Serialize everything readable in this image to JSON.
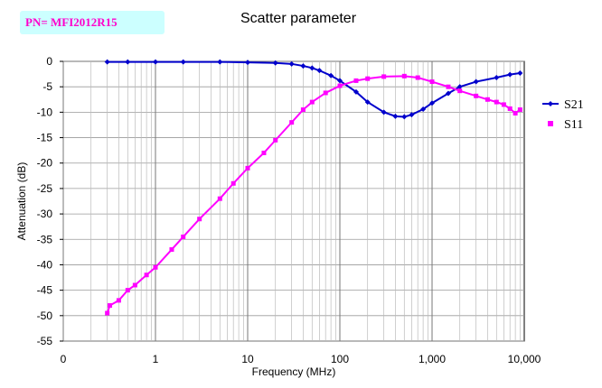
{
  "badge": {
    "text": "PN= MFI2012R15"
  },
  "chart_data": {
    "type": "scatter",
    "title": "Scatter parameter",
    "xlabel": "Frequency (MHz)",
    "ylabel": "Attenuation (dB)",
    "x_scale": "log",
    "x_ticks": [
      {
        "value": 0.1,
        "label": "0"
      },
      {
        "value": 1,
        "label": "1"
      },
      {
        "value": 10,
        "label": "10"
      },
      {
        "value": 100,
        "label": "100"
      },
      {
        "value": 1000,
        "label": "1,000"
      },
      {
        "value": 10000,
        "label": "10,000"
      }
    ],
    "xlim": [
      0.1,
      10000
    ],
    "ylim": [
      -55,
      0
    ],
    "y_ticks": [
      0,
      -5,
      -10,
      -15,
      -20,
      -25,
      -30,
      -35,
      -40,
      -45,
      -50,
      -55
    ],
    "grid": true,
    "legend_position": "right",
    "series": [
      {
        "name": "S21",
        "color": "#0000cc",
        "marker": "diamond",
        "points": [
          [
            0.3,
            -0.1
          ],
          [
            0.5,
            -0.1
          ],
          [
            1,
            -0.1
          ],
          [
            2,
            -0.1
          ],
          [
            5,
            -0.1
          ],
          [
            10,
            -0.2
          ],
          [
            20,
            -0.3
          ],
          [
            30,
            -0.5
          ],
          [
            40,
            -0.9
          ],
          [
            50,
            -1.3
          ],
          [
            60,
            -1.8
          ],
          [
            80,
            -2.8
          ],
          [
            100,
            -3.8
          ],
          [
            150,
            -6.0
          ],
          [
            200,
            -8.0
          ],
          [
            300,
            -10.0
          ],
          [
            400,
            -10.8
          ],
          [
            500,
            -10.9
          ],
          [
            600,
            -10.5
          ],
          [
            800,
            -9.4
          ],
          [
            1000,
            -8.2
          ],
          [
            1500,
            -6.3
          ],
          [
            2000,
            -5.0
          ],
          [
            3000,
            -4.0
          ],
          [
            5000,
            -3.2
          ],
          [
            7000,
            -2.6
          ],
          [
            9000,
            -2.3
          ]
        ]
      },
      {
        "name": "S11",
        "color": "#ff00ff",
        "marker": "square",
        "points": [
          [
            0.3,
            -49.5
          ],
          [
            0.32,
            -48.0
          ],
          [
            0.4,
            -47.0
          ],
          [
            0.5,
            -45.0
          ],
          [
            0.6,
            -44.0
          ],
          [
            0.8,
            -42.0
          ],
          [
            1,
            -40.5
          ],
          [
            1.5,
            -37.0
          ],
          [
            2,
            -34.5
          ],
          [
            3,
            -31.0
          ],
          [
            5,
            -27.0
          ],
          [
            7,
            -24.0
          ],
          [
            10,
            -21.0
          ],
          [
            15,
            -18.0
          ],
          [
            20,
            -15.5
          ],
          [
            30,
            -12.0
          ],
          [
            40,
            -9.5
          ],
          [
            50,
            -8.0
          ],
          [
            70,
            -6.2
          ],
          [
            100,
            -4.8
          ],
          [
            150,
            -3.8
          ],
          [
            200,
            -3.4
          ],
          [
            300,
            -3.0
          ],
          [
            500,
            -2.9
          ],
          [
            700,
            -3.2
          ],
          [
            1000,
            -4.0
          ],
          [
            1500,
            -5.0
          ],
          [
            2000,
            -5.8
          ],
          [
            3000,
            -6.8
          ],
          [
            4000,
            -7.5
          ],
          [
            5000,
            -8.0
          ],
          [
            6000,
            -8.5
          ],
          [
            7000,
            -9.3
          ],
          [
            8000,
            -10.2
          ],
          [
            9000,
            -9.5
          ]
        ]
      }
    ]
  }
}
